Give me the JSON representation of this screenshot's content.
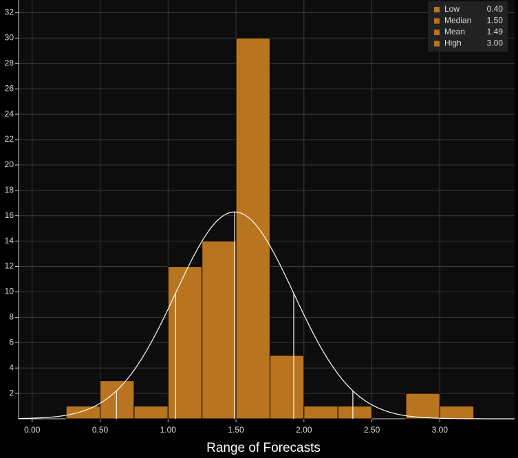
{
  "chart_data": {
    "type": "histogram",
    "xlabel": "Range of Forecasts",
    "bins": [
      0.25,
      0.5,
      0.75,
      1.0,
      1.25,
      1.5,
      1.75,
      2.0,
      2.25,
      2.5,
      2.75,
      3.0,
      3.25
    ],
    "values": [
      1,
      3,
      1,
      12,
      14,
      30,
      5,
      1,
      1,
      0,
      2,
      1
    ],
    "color": "#b8741f",
    "xlim": [
      -0.1,
      3.55
    ],
    "ylim": [
      0,
      33
    ],
    "xticks": [
      {
        "value": 0,
        "label": "0.00"
      },
      {
        "value": 0.5,
        "label": "0.50"
      },
      {
        "value": 1,
        "label": "1.00"
      },
      {
        "value": 1.5,
        "label": "1.50"
      },
      {
        "value": 2,
        "label": "2.00"
      },
      {
        "value": 2.5,
        "label": "2.50"
      },
      {
        "value": 3,
        "label": "3.00"
      }
    ],
    "yticks": [
      2,
      4,
      6,
      8,
      10,
      12,
      14,
      16,
      18,
      20,
      22,
      24,
      26,
      28,
      30,
      32
    ],
    "grid": true,
    "legend": "top-right",
    "stats": {
      "names": [
        "Low",
        "Median",
        "Mean",
        "High"
      ],
      "values": [
        0.4,
        1.5,
        1.49,
        3.0
      ],
      "value_labels": [
        "0.40",
        "1.50",
        "1.49",
        "3.00"
      ]
    },
    "normal_fit": {
      "sd": 0.435,
      "peak": 16.3,
      "color": "#ffffff"
    }
  }
}
